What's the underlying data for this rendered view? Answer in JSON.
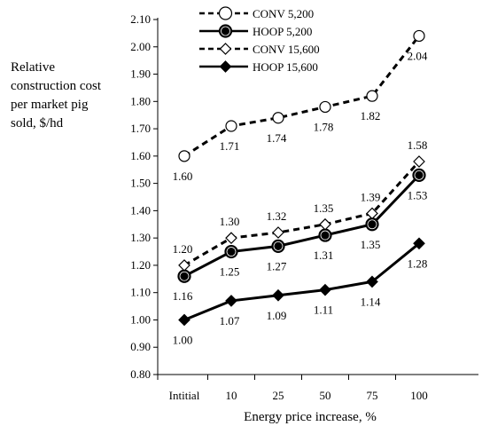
{
  "chart_data": {
    "type": "line",
    "xlabel": "Energy price increase, %",
    "ylabel": "Relative construction cost per market pig sold, $/hd",
    "categories": [
      "Intitial",
      "10",
      "25",
      "50",
      "75",
      "100"
    ],
    "ylim": [
      0.8,
      2.1
    ],
    "ytick_step": 0.1,
    "yticks": [
      "0.80",
      "0.90",
      "1.00",
      "1.10",
      "1.20",
      "1.30",
      "1.40",
      "1.50",
      "1.60",
      "1.70",
      "1.80",
      "1.90",
      "2.00",
      "2.10"
    ],
    "grid": false,
    "legend_position": "top-center",
    "series": [
      {
        "name": "CONV 5,200",
        "values": [
          1.6,
          1.71,
          1.74,
          1.78,
          1.82,
          2.04
        ],
        "labels": [
          "1.60",
          "1.71",
          "1.74",
          "1.78",
          "1.82",
          "2.04"
        ],
        "line": "dashed",
        "marker": "open-circle",
        "label_pos": "below"
      },
      {
        "name": "HOOP 5,200",
        "values": [
          1.16,
          1.25,
          1.27,
          1.31,
          1.35,
          1.53
        ],
        "labels": [
          "1.16",
          "1.25",
          "1.27",
          "1.31",
          "1.35",
          "1.53"
        ],
        "line": "solid",
        "marker": "filled-circle",
        "label_pos": "below"
      },
      {
        "name": "CONV 15,600",
        "values": [
          1.2,
          1.3,
          1.32,
          1.35,
          1.39,
          1.58
        ],
        "labels": [
          "1.20",
          "1.30",
          "1.32",
          "1.35",
          "1.39",
          "1.58"
        ],
        "line": "dashed",
        "marker": "open-diamond",
        "label_pos": "above"
      },
      {
        "name": "HOOP 15,600",
        "values": [
          1.0,
          1.07,
          1.09,
          1.11,
          1.14,
          1.28
        ],
        "labels": [
          "1.00",
          "1.07",
          "1.09",
          "1.11",
          "1.14",
          "1.28"
        ],
        "line": "solid",
        "marker": "filled-diamond",
        "label_pos": "below"
      }
    ]
  }
}
